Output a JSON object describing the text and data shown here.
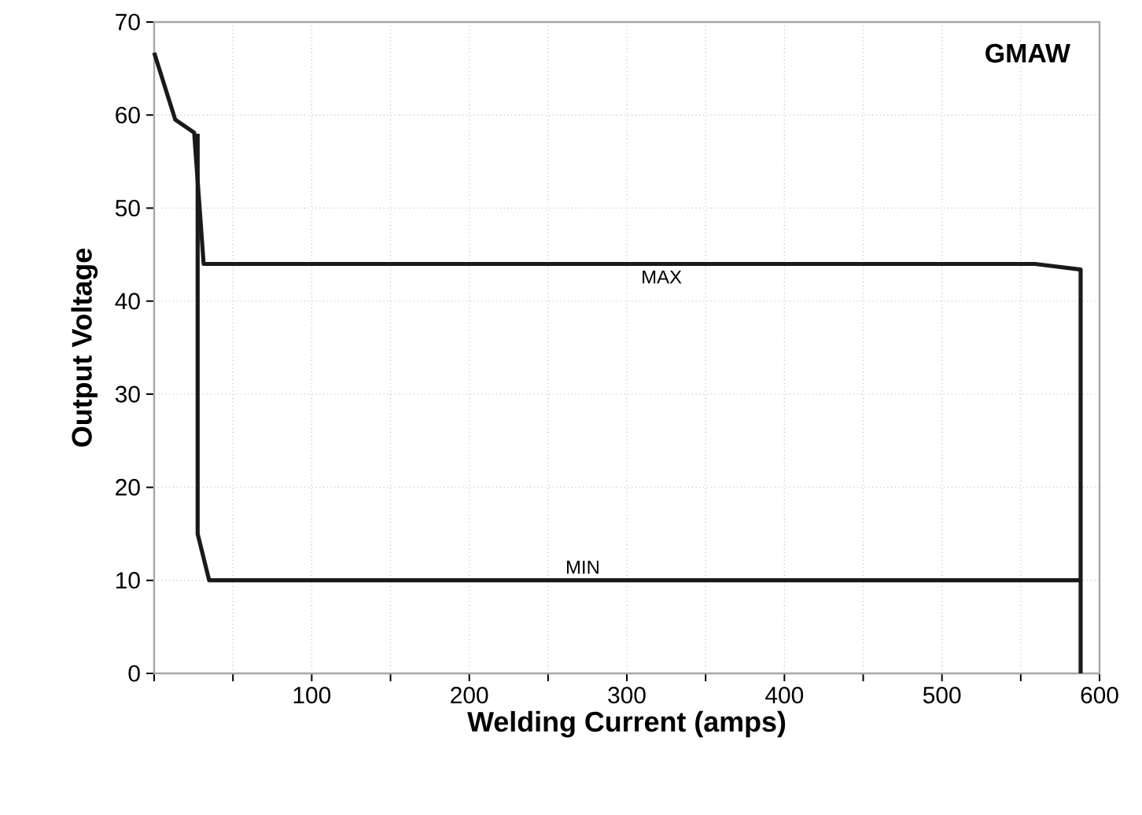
{
  "chart_data": {
    "type": "line",
    "title": "GMAW",
    "xlabel": "Welding Current (amps)",
    "ylabel": "Output Voltage",
    "xlim": [
      0,
      600
    ],
    "ylim": [
      0,
      70
    ],
    "xticks": [
      {
        "value": 0,
        "label": null
      },
      {
        "value": 50,
        "label": null
      },
      100,
      {
        "value": 150,
        "label": null
      },
      200,
      {
        "value": 250,
        "label": null
      },
      300,
      {
        "value": 350,
        "label": null
      },
      400,
      {
        "value": 450,
        "label": null
      },
      500,
      {
        "value": 550,
        "label": null
      },
      600
    ],
    "yticks": [
      0,
      10,
      20,
      30,
      40,
      50,
      60,
      70
    ],
    "grid": true,
    "series": [
      {
        "color": "#1a1a1a",
        "x": [
          0,
          13.4,
          25.4,
          31.4,
          559,
          588,
          588
        ],
        "values": [
          66.7,
          59.5,
          58.1,
          44,
          44,
          43.4,
          0
        ]
      },
      {
        "color": "#1a1a1a",
        "x": [
          27.6,
          27.6,
          34.9,
          588
        ],
        "values": [
          58,
          15,
          10,
          10
        ]
      }
    ],
    "annotations": [
      {
        "text": "MAX",
        "x": 322,
        "y": 44
      },
      {
        "text": "MIN",
        "x": 272,
        "y": 10
      }
    ]
  }
}
